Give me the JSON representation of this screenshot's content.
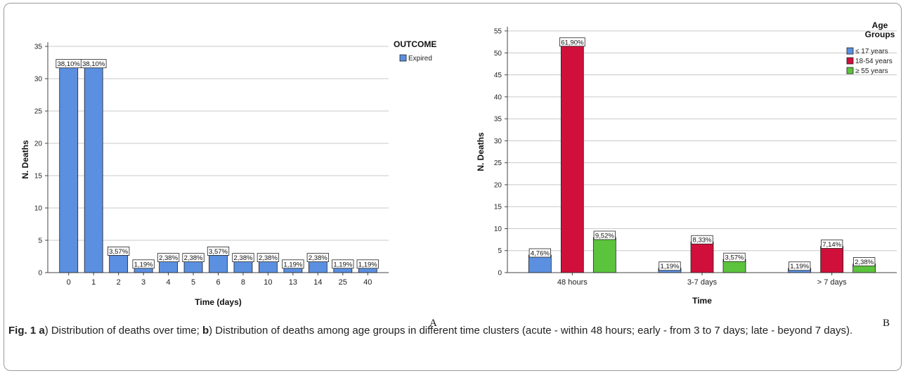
{
  "charts": {
    "a": {
      "panel_letter": "A",
      "chart_data": {
        "type": "bar",
        "title": "",
        "xlabel": "Time (days)",
        "ylabel": "N. Deaths",
        "ylim": [
          0,
          35
        ],
        "yticks": [
          "0",
          "5",
          "10",
          "15",
          "20",
          "25",
          "30",
          "35"
        ],
        "categories": [
          "0",
          "1",
          "2",
          "3",
          "4",
          "5",
          "6",
          "8",
          "10",
          "13",
          "14",
          "25",
          "40"
        ],
        "series": [
          {
            "name": "Expired",
            "color": "#5b8fe0",
            "values": [
              32,
              32,
              3,
              1,
              2,
              2,
              3,
              2,
              2,
              1,
              2,
              1,
              1
            ],
            "labels": [
              "38,10%",
              "38,10%",
              "3,57%",
              "1,19%",
              "2,38%",
              "2,38%",
              "3,57%",
              "2,38%",
              "2,38%",
              "1,19%",
              "2,38%",
              "1,19%",
              "1,19%"
            ]
          }
        ],
        "legend_title": "OUTCOME",
        "legend_position": "right",
        "grid": true
      }
    },
    "b": {
      "panel_letter": "B",
      "chart_data": {
        "type": "bar",
        "title": "",
        "xlabel": "Time",
        "ylabel": "N. Deaths",
        "ylim": [
          0,
          55
        ],
        "yticks": [
          "0",
          "5",
          "10",
          "15",
          "20",
          "25",
          "30",
          "35",
          "40",
          "45",
          "50",
          "55"
        ],
        "categories": [
          "48 hours",
          "3-7 days",
          "> 7 days"
        ],
        "series": [
          {
            "name": "≤ 17 years",
            "color": "#5b8fe0",
            "values": [
              4,
              1,
              1
            ],
            "labels": [
              "4,76%",
              "1,19%",
              "1,19%"
            ]
          },
          {
            "name": "18-54 years",
            "color": "#d0103a",
            "values": [
              52,
              7,
              6
            ],
            "labels": [
              "61,90%",
              "8,33%",
              "7,14%"
            ]
          },
          {
            "name": "≥ 55 years",
            "color": "#5cc33c",
            "values": [
              8,
              3,
              2
            ],
            "labels": [
              "9,52%",
              "3,57%",
              "2,38%"
            ]
          }
        ],
        "legend_title": "Age Groups",
        "legend_position": "top-right",
        "grid": true
      }
    }
  },
  "caption": {
    "fig_label": "Fig. 1",
    "a_letter": "a",
    "a_text": ") Distribution of deaths over time; ",
    "b_letter": "b",
    "b_text": ") Distribution of deaths among age groups in different time clusters (acute - within 48 hours; early - from 3 to 7 days; late - beyond 7 days)."
  }
}
